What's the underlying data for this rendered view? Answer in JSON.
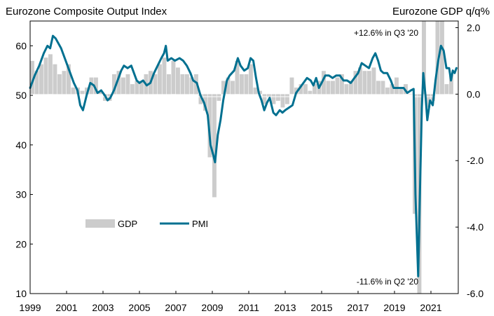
{
  "chart_data": {
    "type": "bar+line",
    "title_left": "Eurozone Composite Output Index",
    "title_right": "Eurozone GDP q/q%",
    "left_axis": {
      "min": 10,
      "max": 65,
      "ticks": [
        "10",
        "20",
        "30",
        "40",
        "50",
        "60"
      ]
    },
    "right_axis": {
      "min": -6.0,
      "max": 2.2,
      "ticks": [
        "-6.0",
        "-4.0",
        "-2.0",
        "0.0",
        "2.0"
      ]
    },
    "x_axis": {
      "min": 1999.0,
      "max": 2022.5,
      "ticks": [
        "1999",
        "2001",
        "2003",
        "2005",
        "2007",
        "2009",
        "2011",
        "2013",
        "2015",
        "2017",
        "2019",
        "2021"
      ]
    },
    "legend": [
      {
        "label": "GDP",
        "color": "#cccccc",
        "kind": "bar"
      },
      {
        "label": "PMI",
        "color": "#007090",
        "kind": "line"
      }
    ],
    "annotations": {
      "high": "+12.6% in Q3 '20",
      "low": "-11.6% in Q2 '20"
    },
    "gdp_q": [
      {
        "q": "1999Q1",
        "v": 1.0
      },
      {
        "q": "1999Q2",
        "v": 0.7
      },
      {
        "q": "1999Q3",
        "v": 0.9
      },
      {
        "q": "1999Q4",
        "v": 1.1
      },
      {
        "q": "2000Q1",
        "v": 1.2
      },
      {
        "q": "2000Q2",
        "v": 0.9
      },
      {
        "q": "2000Q3",
        "v": 0.6
      },
      {
        "q": "2000Q4",
        "v": 0.7
      },
      {
        "q": "2001Q1",
        "v": 0.9
      },
      {
        "q": "2001Q2",
        "v": 0.2
      },
      {
        "q": "2001Q3",
        "v": 0.2
      },
      {
        "q": "2001Q4",
        "v": 0.1
      },
      {
        "q": "2002Q1",
        "v": 0.2
      },
      {
        "q": "2002Q2",
        "v": 0.5
      },
      {
        "q": "2002Q3",
        "v": 0.5
      },
      {
        "q": "2002Q4",
        "v": 0.1
      },
      {
        "q": "2003Q1",
        "v": -0.2
      },
      {
        "q": "2003Q2",
        "v": -0.2
      },
      {
        "q": "2003Q3",
        "v": 0.6
      },
      {
        "q": "2003Q4",
        "v": 0.7
      },
      {
        "q": "2004Q1",
        "v": 0.5
      },
      {
        "q": "2004Q2",
        "v": 0.6
      },
      {
        "q": "2004Q3",
        "v": 0.3
      },
      {
        "q": "2004Q4",
        "v": 0.4
      },
      {
        "q": "2005Q1",
        "v": 0.4
      },
      {
        "q": "2005Q2",
        "v": 0.6
      },
      {
        "q": "2005Q3",
        "v": 0.7
      },
      {
        "q": "2005Q4",
        "v": 0.6
      },
      {
        "q": "2006Q1",
        "v": 0.9
      },
      {
        "q": "2006Q2",
        "v": 1.1
      },
      {
        "q": "2006Q3",
        "v": 0.6
      },
      {
        "q": "2006Q4",
        "v": 1.0
      },
      {
        "q": "2007Q1",
        "v": 0.8
      },
      {
        "q": "2007Q2",
        "v": 0.6
      },
      {
        "q": "2007Q3",
        "v": 0.6
      },
      {
        "q": "2007Q4",
        "v": 0.5
      },
      {
        "q": "2008Q1",
        "v": 0.6
      },
      {
        "q": "2008Q2",
        "v": -0.3
      },
      {
        "q": "2008Q3",
        "v": -0.5
      },
      {
        "q": "2008Q4",
        "v": -1.9
      },
      {
        "q": "2009Q1",
        "v": -3.1
      },
      {
        "q": "2009Q2",
        "v": -0.2
      },
      {
        "q": "2009Q3",
        "v": 0.4
      },
      {
        "q": "2009Q4",
        "v": 0.5
      },
      {
        "q": "2010Q1",
        "v": 0.4
      },
      {
        "q": "2010Q2",
        "v": 1.0
      },
      {
        "q": "2010Q3",
        "v": 0.6
      },
      {
        "q": "2010Q4",
        "v": 0.6
      },
      {
        "q": "2011Q1",
        "v": 0.9
      },
      {
        "q": "2011Q2",
        "v": 0.2
      },
      {
        "q": "2011Q3",
        "v": 0.1
      },
      {
        "q": "2011Q4",
        "v": -0.3
      },
      {
        "q": "2012Q1",
        "v": -0.1
      },
      {
        "q": "2012Q2",
        "v": -0.3
      },
      {
        "q": "2012Q3",
        "v": -0.2
      },
      {
        "q": "2012Q4",
        "v": -0.4
      },
      {
        "q": "2013Q1",
        "v": -0.3
      },
      {
        "q": "2013Q2",
        "v": 0.5
      },
      {
        "q": "2013Q3",
        "v": 0.2
      },
      {
        "q": "2013Q4",
        "v": 0.3
      },
      {
        "q": "2014Q1",
        "v": 0.3
      },
      {
        "q": "2014Q2",
        "v": 0.1
      },
      {
        "q": "2014Q3",
        "v": 0.3
      },
      {
        "q": "2014Q4",
        "v": 0.4
      },
      {
        "q": "2015Q1",
        "v": 0.7
      },
      {
        "q": "2015Q2",
        "v": 0.4
      },
      {
        "q": "2015Q3",
        "v": 0.4
      },
      {
        "q": "2015Q4",
        "v": 0.5
      },
      {
        "q": "2016Q1",
        "v": 0.6
      },
      {
        "q": "2016Q2",
        "v": 0.3
      },
      {
        "q": "2016Q3",
        "v": 0.4
      },
      {
        "q": "2016Q4",
        "v": 0.7
      },
      {
        "q": "2017Q1",
        "v": 0.8
      },
      {
        "q": "2017Q2",
        "v": 0.7
      },
      {
        "q": "2017Q3",
        "v": 0.7
      },
      {
        "q": "2017Q4",
        "v": 0.8
      },
      {
        "q": "2018Q1",
        "v": 0.4
      },
      {
        "q": "2018Q2",
        "v": 0.4
      },
      {
        "q": "2018Q3",
        "v": 0.2
      },
      {
        "q": "2018Q4",
        "v": 0.3
      },
      {
        "q": "2019Q1",
        "v": 0.5
      },
      {
        "q": "2019Q2",
        "v": 0.2
      },
      {
        "q": "2019Q3",
        "v": 0.3
      },
      {
        "q": "2019Q4",
        "v": 0.0
      },
      {
        "q": "2020Q1",
        "v": -3.6
      },
      {
        "q": "2020Q2",
        "v": -11.6
      },
      {
        "q": "2020Q3",
        "v": 12.6
      },
      {
        "q": "2020Q4",
        "v": -0.4
      },
      {
        "q": "2021Q1",
        "v": -0.2
      },
      {
        "q": "2021Q2",
        "v": 2.2
      },
      {
        "q": "2021Q3",
        "v": 2.3
      },
      {
        "q": "2021Q4",
        "v": 0.3
      },
      {
        "q": "2022Q1",
        "v": 0.6
      }
    ],
    "pmi_m": [
      {
        "t": 1999.0,
        "v": 51.5
      },
      {
        "t": 1999.25,
        "v": 54.0
      },
      {
        "t": 1999.5,
        "v": 56.0
      },
      {
        "t": 1999.75,
        "v": 58.5
      },
      {
        "t": 1999.95,
        "v": 60.0
      },
      {
        "t": 2000.1,
        "v": 59.5
      },
      {
        "t": 2000.25,
        "v": 62.0
      },
      {
        "t": 2000.4,
        "v": 61.5
      },
      {
        "t": 2000.7,
        "v": 59.5
      },
      {
        "t": 2000.9,
        "v": 57.5
      },
      {
        "t": 2001.15,
        "v": 55.0
      },
      {
        "t": 2001.4,
        "v": 52.5
      },
      {
        "t": 2001.6,
        "v": 51.0
      },
      {
        "t": 2001.75,
        "v": 48.0
      },
      {
        "t": 2001.9,
        "v": 47.0
      },
      {
        "t": 2002.1,
        "v": 50.0
      },
      {
        "t": 2002.3,
        "v": 52.5
      },
      {
        "t": 2002.5,
        "v": 52.0
      },
      {
        "t": 2002.7,
        "v": 50.5
      },
      {
        "t": 2002.9,
        "v": 51.0
      },
      {
        "t": 2003.1,
        "v": 50.0
      },
      {
        "t": 2003.25,
        "v": 49.0
      },
      {
        "t": 2003.4,
        "v": 49.5
      },
      {
        "t": 2003.6,
        "v": 51.0
      },
      {
        "t": 2003.8,
        "v": 53.0
      },
      {
        "t": 2004.0,
        "v": 55.0
      },
      {
        "t": 2004.15,
        "v": 56.0
      },
      {
        "t": 2004.35,
        "v": 55.5
      },
      {
        "t": 2004.55,
        "v": 56.0
      },
      {
        "t": 2004.7,
        "v": 54.5
      },
      {
        "t": 2004.85,
        "v": 53.0
      },
      {
        "t": 2005.0,
        "v": 52.5
      },
      {
        "t": 2005.2,
        "v": 53.0
      },
      {
        "t": 2005.4,
        "v": 52.0
      },
      {
        "t": 2005.6,
        "v": 52.5
      },
      {
        "t": 2005.8,
        "v": 54.5
      },
      {
        "t": 2006.0,
        "v": 56.0
      },
      {
        "t": 2006.2,
        "v": 57.5
      },
      {
        "t": 2006.35,
        "v": 58.5
      },
      {
        "t": 2006.45,
        "v": 60.0
      },
      {
        "t": 2006.55,
        "v": 57.0
      },
      {
        "t": 2006.75,
        "v": 57.5
      },
      {
        "t": 2006.95,
        "v": 57.0
      },
      {
        "t": 2007.2,
        "v": 57.5
      },
      {
        "t": 2007.4,
        "v": 57.0
      },
      {
        "t": 2007.6,
        "v": 56.0
      },
      {
        "t": 2007.8,
        "v": 54.5
      },
      {
        "t": 2007.95,
        "v": 53.0
      },
      {
        "t": 2008.15,
        "v": 52.5
      },
      {
        "t": 2008.35,
        "v": 50.0
      },
      {
        "t": 2008.55,
        "v": 48.5
      },
      {
        "t": 2008.75,
        "v": 46.0
      },
      {
        "t": 2008.9,
        "v": 40.0
      },
      {
        "t": 2009.05,
        "v": 38.0
      },
      {
        "t": 2009.15,
        "v": 36.5
      },
      {
        "t": 2009.3,
        "v": 42.0
      },
      {
        "t": 2009.45,
        "v": 45.0
      },
      {
        "t": 2009.6,
        "v": 49.0
      },
      {
        "t": 2009.8,
        "v": 53.0
      },
      {
        "t": 2009.95,
        "v": 54.0
      },
      {
        "t": 2010.2,
        "v": 55.0
      },
      {
        "t": 2010.4,
        "v": 57.5
      },
      {
        "t": 2010.55,
        "v": 56.0
      },
      {
        "t": 2010.75,
        "v": 55.0
      },
      {
        "t": 2010.95,
        "v": 55.5
      },
      {
        "t": 2011.1,
        "v": 57.5
      },
      {
        "t": 2011.25,
        "v": 57.0
      },
      {
        "t": 2011.4,
        "v": 53.5
      },
      {
        "t": 2011.55,
        "v": 50.5
      },
      {
        "t": 2011.7,
        "v": 49.0
      },
      {
        "t": 2011.85,
        "v": 47.0
      },
      {
        "t": 2012.0,
        "v": 48.5
      },
      {
        "t": 2012.15,
        "v": 49.5
      },
      {
        "t": 2012.35,
        "v": 46.5
      },
      {
        "t": 2012.5,
        "v": 46.0
      },
      {
        "t": 2012.7,
        "v": 47.0
      },
      {
        "t": 2012.85,
        "v": 46.5
      },
      {
        "t": 2013.0,
        "v": 47.0
      },
      {
        "t": 2013.2,
        "v": 47.5
      },
      {
        "t": 2013.4,
        "v": 48.0
      },
      {
        "t": 2013.6,
        "v": 50.5
      },
      {
        "t": 2013.8,
        "v": 51.5
      },
      {
        "t": 2014.0,
        "v": 52.5
      },
      {
        "t": 2014.2,
        "v": 53.5
      },
      {
        "t": 2014.4,
        "v": 53.0
      },
      {
        "t": 2014.55,
        "v": 52.0
      },
      {
        "t": 2014.7,
        "v": 53.5
      },
      {
        "t": 2014.85,
        "v": 51.5
      },
      {
        "t": 2015.0,
        "v": 52.5
      },
      {
        "t": 2015.2,
        "v": 54.0
      },
      {
        "t": 2015.4,
        "v": 54.0
      },
      {
        "t": 2015.6,
        "v": 53.5
      },
      {
        "t": 2015.8,
        "v": 54.0
      },
      {
        "t": 2016.0,
        "v": 54.0
      },
      {
        "t": 2016.2,
        "v": 53.0
      },
      {
        "t": 2016.4,
        "v": 53.0
      },
      {
        "t": 2016.6,
        "v": 52.5
      },
      {
        "t": 2016.8,
        "v": 53.5
      },
      {
        "t": 2017.0,
        "v": 54.5
      },
      {
        "t": 2017.2,
        "v": 56.5
      },
      {
        "t": 2017.4,
        "v": 56.0
      },
      {
        "t": 2017.6,
        "v": 55.5
      },
      {
        "t": 2017.8,
        "v": 57.5
      },
      {
        "t": 2017.95,
        "v": 58.5
      },
      {
        "t": 2018.1,
        "v": 57.0
      },
      {
        "t": 2018.25,
        "v": 55.0
      },
      {
        "t": 2018.4,
        "v": 54.5
      },
      {
        "t": 2018.6,
        "v": 54.5
      },
      {
        "t": 2018.8,
        "v": 53.0
      },
      {
        "t": 2018.95,
        "v": 51.5
      },
      {
        "t": 2019.1,
        "v": 51.5
      },
      {
        "t": 2019.3,
        "v": 51.5
      },
      {
        "t": 2019.5,
        "v": 51.5
      },
      {
        "t": 2019.7,
        "v": 50.5
      },
      {
        "t": 2019.9,
        "v": 51.0
      },
      {
        "t": 2020.05,
        "v": 51.3
      },
      {
        "t": 2020.15,
        "v": 30.0
      },
      {
        "t": 2020.3,
        "v": 13.5
      },
      {
        "t": 2020.4,
        "v": 31.0
      },
      {
        "t": 2020.5,
        "v": 47.5
      },
      {
        "t": 2020.58,
        "v": 54.5
      },
      {
        "t": 2020.7,
        "v": 50.0
      },
      {
        "t": 2020.8,
        "v": 45.0
      },
      {
        "t": 2020.95,
        "v": 49.0
      },
      {
        "t": 2021.1,
        "v": 48.0
      },
      {
        "t": 2021.25,
        "v": 53.0
      },
      {
        "t": 2021.4,
        "v": 57.0
      },
      {
        "t": 2021.55,
        "v": 60.0
      },
      {
        "t": 2021.7,
        "v": 59.0
      },
      {
        "t": 2021.85,
        "v": 55.5
      },
      {
        "t": 2022.0,
        "v": 55.5
      },
      {
        "t": 2022.1,
        "v": 53.0
      },
      {
        "t": 2022.2,
        "v": 55.0
      },
      {
        "t": 2022.3,
        "v": 54.5
      },
      {
        "t": 2022.4,
        "v": 55.5
      }
    ]
  }
}
